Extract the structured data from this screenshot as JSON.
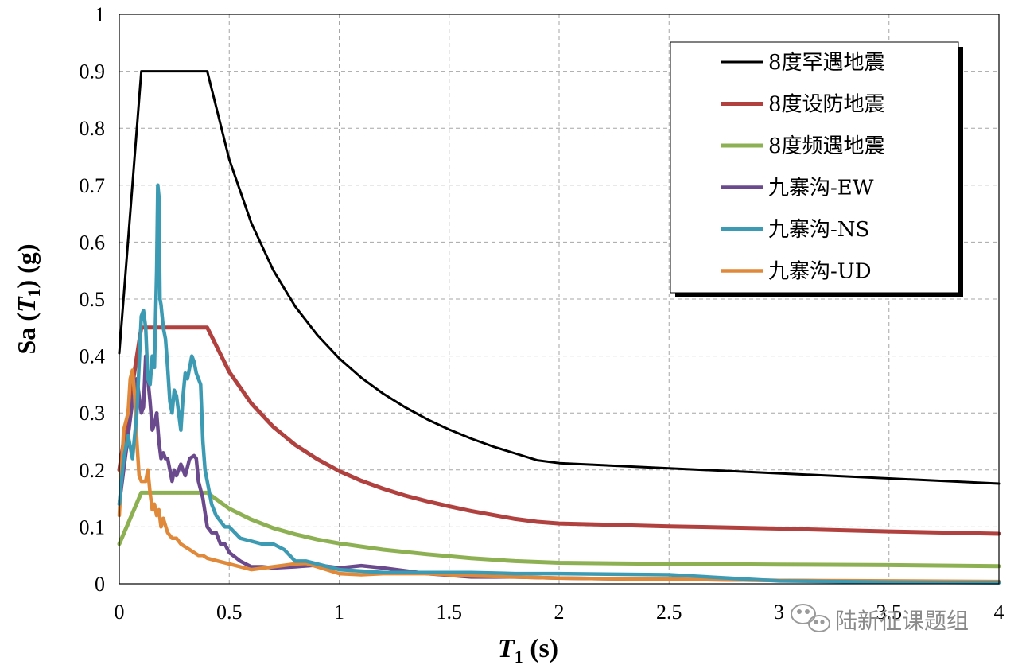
{
  "chart_data": {
    "type": "line",
    "xlabel_main": "T",
    "xlabel_sub": "1",
    "xlabel_unit": " (s)",
    "ylabel_main": "Sa (",
    "ylabel_italic": "T",
    "ylabel_sub": "1",
    "ylabel_unit": ") (g)",
    "xlim": [
      0,
      4
    ],
    "ylim": [
      0,
      1
    ],
    "xticks": [
      0,
      0.5,
      1,
      1.5,
      2,
      2.5,
      3,
      3.5,
      4
    ],
    "xtick_labels": [
      "0",
      "0.5",
      "1",
      "1.5",
      "2",
      "2.5",
      "3",
      "3.5",
      "4"
    ],
    "yticks": [
      0,
      0.1,
      0.2,
      0.3,
      0.4,
      0.5,
      0.6,
      0.7,
      0.8,
      0.9,
      1
    ],
    "ytick_labels": [
      "0",
      "0.1",
      "0.2",
      "0.3",
      "0.4",
      "0.5",
      "0.6",
      "0.7",
      "0.8",
      "0.9",
      "1"
    ],
    "grid": true,
    "legend_position": "top-right",
    "series": [
      {
        "name": "8度罕遇地震",
        "color": "#000000",
        "x": [
          0,
          0.1,
          0.4,
          0.5,
          0.6,
          0.7,
          0.8,
          0.9,
          1.0,
          1.1,
          1.2,
          1.3,
          1.4,
          1.5,
          1.6,
          1.7,
          1.8,
          1.9,
          2.0,
          2.5,
          3.0,
          3.5,
          4.0
        ],
        "y": [
          0.405,
          0.9,
          0.9,
          0.745,
          0.634,
          0.551,
          0.487,
          0.437,
          0.396,
          0.362,
          0.334,
          0.31,
          0.289,
          0.271,
          0.255,
          0.241,
          0.229,
          0.217,
          0.212,
          0.203,
          0.194,
          0.185,
          0.176
        ]
      },
      {
        "name": "8度设防地震",
        "color": "#b0413e",
        "x": [
          0,
          0.1,
          0.4,
          0.5,
          0.6,
          0.7,
          0.8,
          0.9,
          1.0,
          1.1,
          1.2,
          1.3,
          1.4,
          1.5,
          1.6,
          1.7,
          1.8,
          1.9,
          2.0,
          2.5,
          3.0,
          3.5,
          4.0
        ],
        "y": [
          0.2,
          0.45,
          0.45,
          0.372,
          0.317,
          0.276,
          0.244,
          0.219,
          0.198,
          0.181,
          0.167,
          0.155,
          0.145,
          0.136,
          0.128,
          0.121,
          0.114,
          0.109,
          0.106,
          0.101,
          0.097,
          0.092,
          0.088
        ]
      },
      {
        "name": "8度频遇地震",
        "color": "#8db152",
        "x": [
          0,
          0.1,
          0.4,
          0.5,
          0.6,
          0.7,
          0.8,
          0.9,
          1.0,
          1.2,
          1.4,
          1.6,
          1.8,
          2.0,
          2.5,
          3.0,
          3.5,
          4.0
        ],
        "y": [
          0.07,
          0.16,
          0.16,
          0.132,
          0.113,
          0.098,
          0.087,
          0.078,
          0.071,
          0.06,
          0.052,
          0.045,
          0.04,
          0.037,
          0.035,
          0.034,
          0.033,
          0.031
        ]
      },
      {
        "name": "九寨沟-EW",
        "color": "#6a4a8c",
        "x": [
          0,
          0.02,
          0.04,
          0.06,
          0.08,
          0.1,
          0.11,
          0.12,
          0.13,
          0.14,
          0.15,
          0.16,
          0.17,
          0.18,
          0.19,
          0.2,
          0.21,
          0.22,
          0.23,
          0.24,
          0.25,
          0.26,
          0.28,
          0.3,
          0.32,
          0.34,
          0.35,
          0.36,
          0.38,
          0.4,
          0.42,
          0.44,
          0.46,
          0.48,
          0.5,
          0.55,
          0.6,
          0.65,
          0.7,
          0.8,
          0.9,
          1.0,
          1.1,
          1.2,
          1.4,
          1.6,
          1.8,
          2.0,
          2.5,
          3.0,
          3.5,
          4.0
        ],
        "y": [
          0.14,
          0.2,
          0.26,
          0.32,
          0.36,
          0.3,
          0.31,
          0.4,
          0.36,
          0.32,
          0.27,
          0.28,
          0.3,
          0.25,
          0.22,
          0.23,
          0.22,
          0.22,
          0.2,
          0.18,
          0.2,
          0.19,
          0.21,
          0.19,
          0.22,
          0.225,
          0.22,
          0.18,
          0.15,
          0.1,
          0.09,
          0.09,
          0.07,
          0.07,
          0.055,
          0.04,
          0.03,
          0.03,
          0.028,
          0.03,
          0.033,
          0.028,
          0.032,
          0.028,
          0.018,
          0.012,
          0.012,
          0.01,
          0.008,
          0.006,
          0.004,
          0.003
        ]
      },
      {
        "name": "九寨沟-NS",
        "color": "#3c9bb2",
        "x": [
          0,
          0.02,
          0.04,
          0.06,
          0.08,
          0.1,
          0.11,
          0.12,
          0.13,
          0.14,
          0.15,
          0.16,
          0.17,
          0.175,
          0.18,
          0.185,
          0.19,
          0.2,
          0.21,
          0.22,
          0.23,
          0.24,
          0.25,
          0.26,
          0.27,
          0.28,
          0.29,
          0.3,
          0.31,
          0.32,
          0.33,
          0.34,
          0.35,
          0.36,
          0.37,
          0.38,
          0.39,
          0.4,
          0.42,
          0.44,
          0.46,
          0.48,
          0.5,
          0.55,
          0.6,
          0.65,
          0.7,
          0.75,
          0.8,
          0.85,
          0.9,
          1.0,
          1.2,
          1.4,
          1.6,
          1.8,
          2.0,
          2.5,
          3.0,
          3.5,
          4.0
        ],
        "y": [
          0.14,
          0.22,
          0.26,
          0.22,
          0.3,
          0.47,
          0.48,
          0.45,
          0.36,
          0.35,
          0.4,
          0.38,
          0.55,
          0.7,
          0.68,
          0.5,
          0.49,
          0.45,
          0.43,
          0.38,
          0.32,
          0.3,
          0.34,
          0.33,
          0.3,
          0.27,
          0.33,
          0.37,
          0.36,
          0.38,
          0.4,
          0.39,
          0.37,
          0.36,
          0.35,
          0.25,
          0.2,
          0.18,
          0.14,
          0.12,
          0.11,
          0.1,
          0.1,
          0.08,
          0.075,
          0.07,
          0.07,
          0.06,
          0.04,
          0.04,
          0.035,
          0.025,
          0.02,
          0.02,
          0.02,
          0.018,
          0.018,
          0.016,
          0.005,
          0.003,
          0.002
        ]
      },
      {
        "name": "九寨沟-UD",
        "color": "#e0893a",
        "x": [
          0,
          0.02,
          0.04,
          0.05,
          0.06,
          0.07,
          0.08,
          0.09,
          0.1,
          0.12,
          0.13,
          0.14,
          0.15,
          0.16,
          0.17,
          0.18,
          0.19,
          0.2,
          0.22,
          0.24,
          0.26,
          0.28,
          0.3,
          0.32,
          0.34,
          0.36,
          0.38,
          0.4,
          0.45,
          0.5,
          0.55,
          0.6,
          0.7,
          0.8,
          0.85,
          0.9,
          1.0,
          1.1,
          1.2,
          1.4,
          1.6,
          1.8,
          2.0,
          2.5,
          3.0,
          3.5,
          4.0
        ],
        "y": [
          0.12,
          0.27,
          0.3,
          0.36,
          0.375,
          0.33,
          0.25,
          0.19,
          0.18,
          0.18,
          0.2,
          0.16,
          0.13,
          0.14,
          0.12,
          0.13,
          0.1,
          0.115,
          0.09,
          0.08,
          0.08,
          0.07,
          0.065,
          0.06,
          0.055,
          0.05,
          0.05,
          0.045,
          0.04,
          0.035,
          0.03,
          0.025,
          0.03,
          0.035,
          0.036,
          0.03,
          0.018,
          0.016,
          0.018,
          0.018,
          0.014,
          0.012,
          0.01,
          0.008,
          0.006,
          0.005,
          0.004
        ]
      }
    ]
  },
  "watermark": {
    "text": "陆新征课题组",
    "icon": "wechat-icon"
  }
}
